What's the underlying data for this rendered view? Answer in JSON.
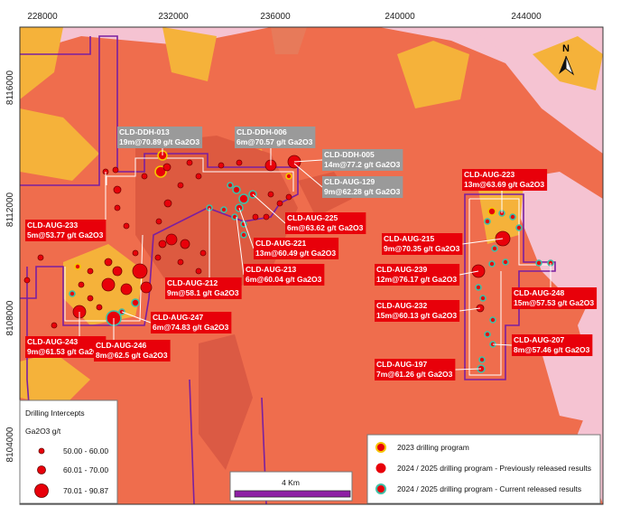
{
  "map": {
    "x_labels": [
      "228000",
      "232000",
      "236000",
      "240000",
      "244000"
    ],
    "y_labels": [
      "8116000",
      "8112000",
      "8108000",
      "8104000"
    ],
    "north": "N",
    "callouts": [
      {
        "name": "CLD-DDH-013",
        "detail": "19m@70.89 g/t Ga2O3"
      },
      {
        "name": "CLD-DDH-006",
        "detail": "6m@70.57 g/t Ga2O3"
      },
      {
        "name": "CLD-DDH-005",
        "detail": "14m@77.2 g/t Ga2O3"
      },
      {
        "name": "CLD-AUG-129",
        "detail": "9m@62.28 g/t Ga2O3"
      },
      {
        "name": "CLD-AUG-223",
        "detail": "13m@63.69 g/t Ga2O3"
      },
      {
        "name": "CLD-AUG-233",
        "detail": "5m@53.77 g/t Ga2O3"
      },
      {
        "name": "CLD-AUG-225",
        "detail": "6m@63.62 g/t Ga2O3"
      },
      {
        "name": "CLD-AUG-221",
        "detail": "13m@60.49 g/t Ga2O3"
      },
      {
        "name": "CLD-AUG-215",
        "detail": "9m@70.35 g/t Ga2O3"
      },
      {
        "name": "CLD-AUG-213",
        "detail": "6m@60.04 g/t Ga2O3"
      },
      {
        "name": "CLD-AUG-212",
        "detail": "9m@58.1 g/t Ga2O3"
      },
      {
        "name": "CLD-AUG-239",
        "detail": "12m@76.17 g/t Ga2O3"
      },
      {
        "name": "CLD-AUG-248",
        "detail": "15m@57.53 g/t Ga2O3"
      },
      {
        "name": "CLD-AUG-232",
        "detail": "15m@60.13 g/t Ga2O3"
      },
      {
        "name": "CLD-AUG-247",
        "detail": "6m@74.83 g/t Ga2O3"
      },
      {
        "name": "CLD-AUG-243",
        "detail": "9m@61.53 g/t Ga2O3"
      },
      {
        "name": "CLD-AUG-246",
        "detail": "8m@62.5 g/t Ga2O3"
      },
      {
        "name": "CLD-AUG-207",
        "detail": "8m@57.46 g/t Ga2O3"
      },
      {
        "name": "CLD-AUG-197",
        "detail": "7m@61.26 g/t Ga2O3"
      }
    ],
    "size_legend": {
      "title": "Drilling Intercepts",
      "subtitle": "Ga2O3 g/t",
      "items": [
        "50.00 - 60.00",
        "60.01 - 70.00",
        "70.01 - 90.87"
      ]
    },
    "program_legend": [
      "2023 drilling program",
      "2024 / 2025 drilling program - Previously released results",
      "2024 / 2025 drilling program - Current released results"
    ],
    "scale": "4 Km"
  }
}
